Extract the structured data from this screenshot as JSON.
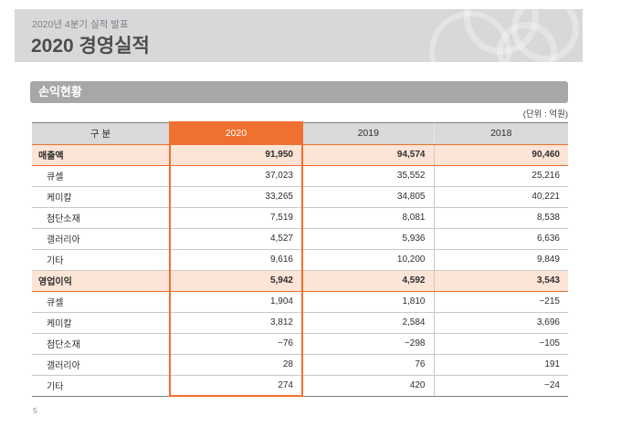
{
  "page": {
    "subtitle": "2020년 4분기 실적 발표",
    "title": "2020 경영실적",
    "section_title": "손익현황",
    "unit_label": "(단위 : 억원)",
    "page_number": "5"
  },
  "icons": {
    "banner_decoration": "overlapping-rings"
  },
  "colors": {
    "accent_orange": "#f0702f",
    "highlight_row_peach": "#fce4d6",
    "header_cell_gray": "#d9d9d9",
    "banner_gray": "#d7d8d9",
    "section_bar_gray": "#a6a7a9",
    "table_outer_border": "#7f7f7f",
    "row_divider_gray": "#c9c9c9"
  },
  "table": {
    "columns": [
      "구 분",
      "2020",
      "2019",
      "2018"
    ],
    "rows": [
      {
        "label": "매출액",
        "type": "summary",
        "values": [
          "91,950",
          "94,574",
          "90,460"
        ]
      },
      {
        "label": "큐셀",
        "type": "sub",
        "values": [
          "37,023",
          "35,552",
          "25,216"
        ]
      },
      {
        "label": "케미칼",
        "type": "sub",
        "values": [
          "33,265",
          "34,805",
          "40,221"
        ]
      },
      {
        "label": "첨단소재",
        "type": "sub",
        "values": [
          "7,519",
          "8,081",
          "8,538"
        ]
      },
      {
        "label": "갤러리아",
        "type": "sub",
        "values": [
          "4,527",
          "5,936",
          "6,636"
        ]
      },
      {
        "label": "기타",
        "type": "sub",
        "values": [
          "9,616",
          "10,200",
          "9,849"
        ]
      },
      {
        "label": "영업이익",
        "type": "summary",
        "values": [
          "5,942",
          "4,592",
          "3,543"
        ]
      },
      {
        "label": "큐셀",
        "type": "sub",
        "values": [
          "1,904",
          "1,810",
          "−215"
        ]
      },
      {
        "label": "케미칼",
        "type": "sub",
        "values": [
          "3,812",
          "2,584",
          "3,696"
        ]
      },
      {
        "label": "첨단소재",
        "type": "sub",
        "values": [
          "−76",
          "−298",
          "−105"
        ]
      },
      {
        "label": "갤러리아",
        "type": "sub",
        "values": [
          "28",
          "76",
          "191"
        ]
      },
      {
        "label": "기타",
        "type": "sub",
        "values": [
          "274",
          "420",
          "−24"
        ]
      }
    ]
  }
}
